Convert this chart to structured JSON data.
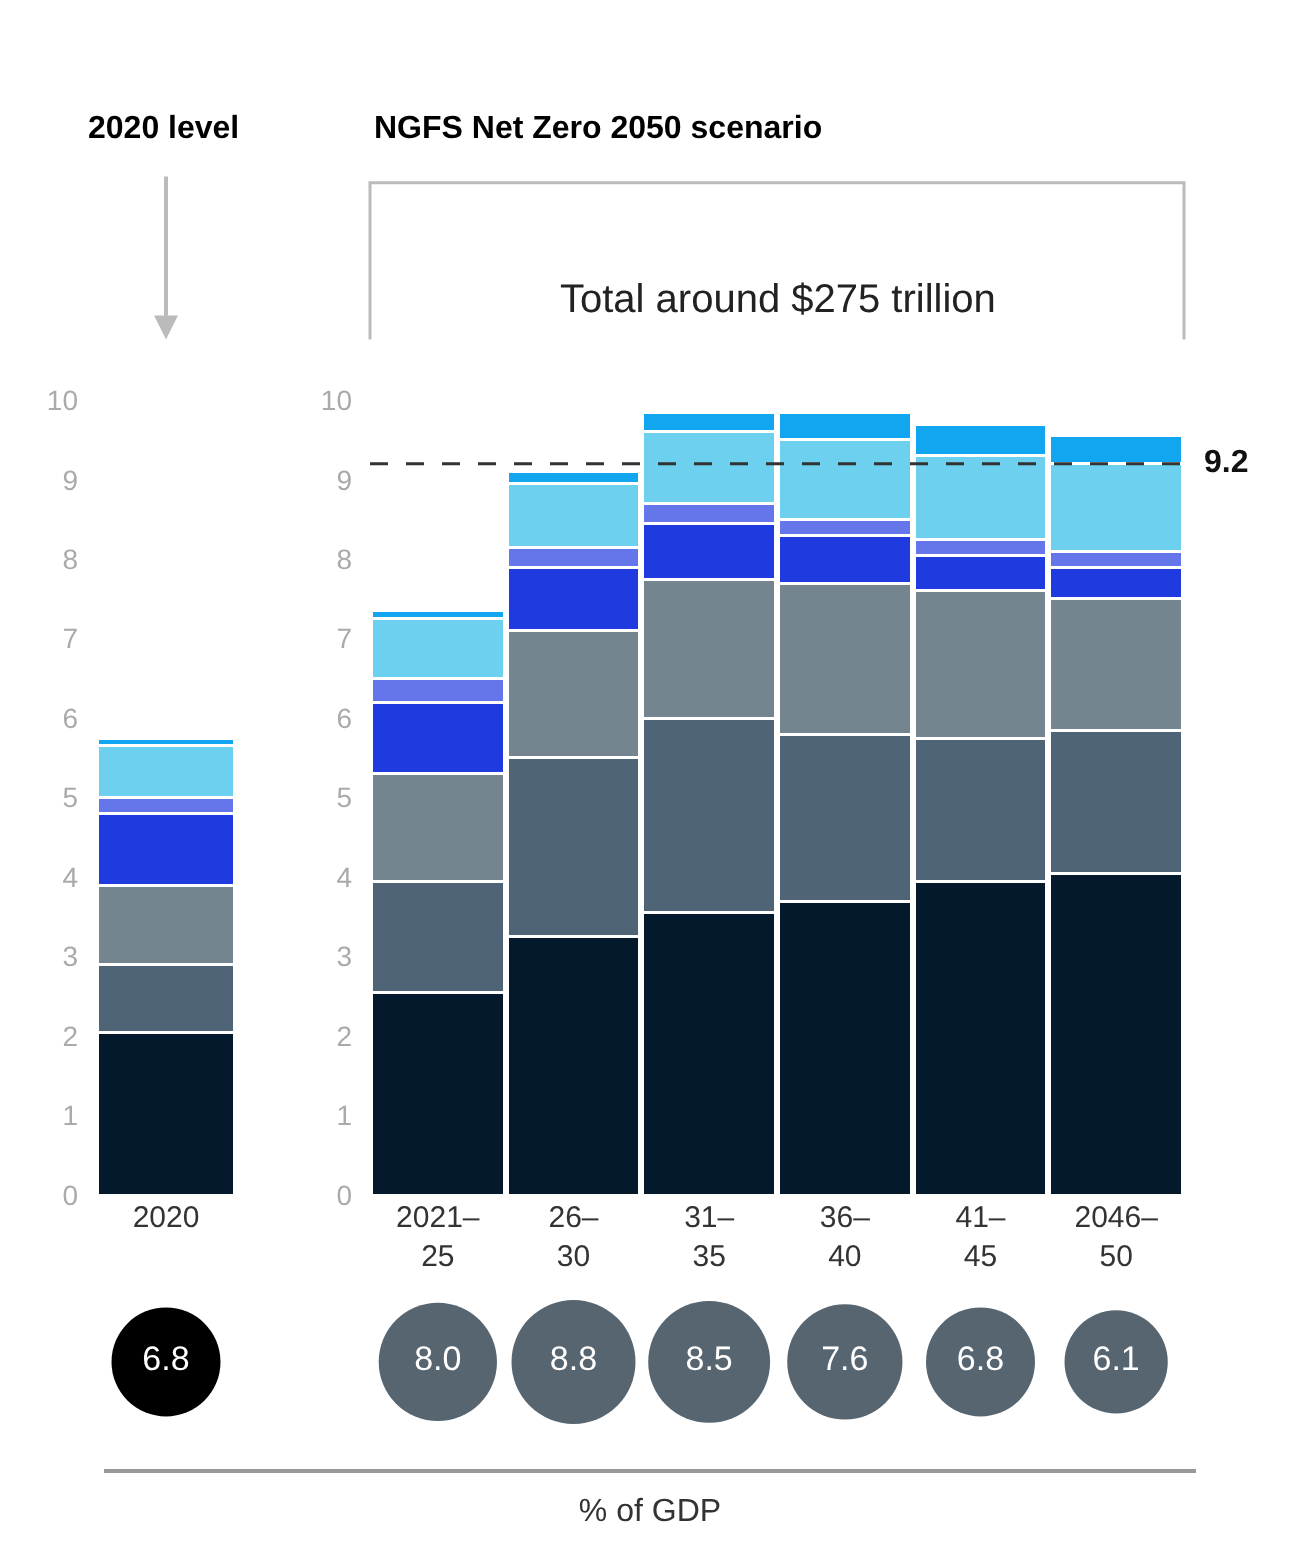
{
  "chart_data": [
    {
      "type": "bar",
      "title": "2020 level",
      "stacked": true,
      "categories": [
        "2020"
      ],
      "ylim": [
        0,
        10
      ],
      "yticks": [
        0,
        1,
        2,
        3,
        4,
        5,
        6,
        7,
        8,
        9,
        10
      ],
      "series": [
        {
          "color": "#041a2c",
          "values": [
            2.05
          ]
        },
        {
          "color": "#4f6577",
          "values": [
            0.85
          ]
        },
        {
          "color": "#74858f",
          "values": [
            1.0
          ]
        },
        {
          "color": "#1f3be0",
          "values": [
            0.9
          ]
        },
        {
          "color": "#6576ea",
          "values": [
            0.2
          ]
        },
        {
          "color": "#6dd0ef",
          "values": [
            0.65
          ]
        },
        {
          "color": "#12a5f0",
          "values": [
            0.1
          ]
        }
      ]
    },
    {
      "type": "bar",
      "title": "NGFS Net Zero 2050 scenario",
      "subtitle": "Total around $275 trillion",
      "stacked": true,
      "categories": [
        "2021–25",
        "26–30",
        "31–35",
        "36–40",
        "41–45",
        "2046–50"
      ],
      "ylim": [
        0,
        10
      ],
      "yticks": [
        0,
        1,
        2,
        3,
        4,
        5,
        6,
        7,
        8,
        9,
        10
      ],
      "ref_lines": [
        {
          "axis": "y",
          "value": 9.2,
          "label": "9.2",
          "line_style": "dashed",
          "color": "#333333"
        }
      ],
      "series": [
        {
          "color": "#041a2c",
          "values": [
            2.55,
            3.25,
            3.55,
            3.7,
            3.95,
            4.05
          ]
        },
        {
          "color": "#4f6577",
          "values": [
            1.4,
            2.25,
            2.45,
            2.1,
            1.8,
            1.8
          ]
        },
        {
          "color": "#74858f",
          "values": [
            1.35,
            1.6,
            1.75,
            1.9,
            1.85,
            1.65
          ]
        },
        {
          "color": "#1f3be0",
          "values": [
            0.9,
            0.8,
            0.7,
            0.6,
            0.45,
            0.4
          ]
        },
        {
          "color": "#6576ea",
          "values": [
            0.3,
            0.25,
            0.25,
            0.2,
            0.2,
            0.2
          ]
        },
        {
          "color": "#6dd0ef",
          "values": [
            0.75,
            0.8,
            0.9,
            1.0,
            1.05,
            1.1
          ]
        },
        {
          "color": "#12a5f0",
          "values": [
            0.1,
            0.15,
            0.25,
            0.35,
            0.4,
            0.35
          ]
        }
      ]
    },
    {
      "type": "other",
      "xlabel": "% of GDP",
      "values": [
        6.8,
        8.0,
        8.8,
        8.5,
        7.6,
        6.8,
        6.1
      ],
      "value_labels": [
        "6.8",
        "8.0",
        "8.8",
        "8.5",
        "7.6",
        "6.8",
        "6.1"
      ],
      "colors": [
        "#000000",
        "#56656f",
        "#56656f",
        "#56656f",
        "#56656f",
        "#56656f",
        "#56656f"
      ]
    }
  ]
}
